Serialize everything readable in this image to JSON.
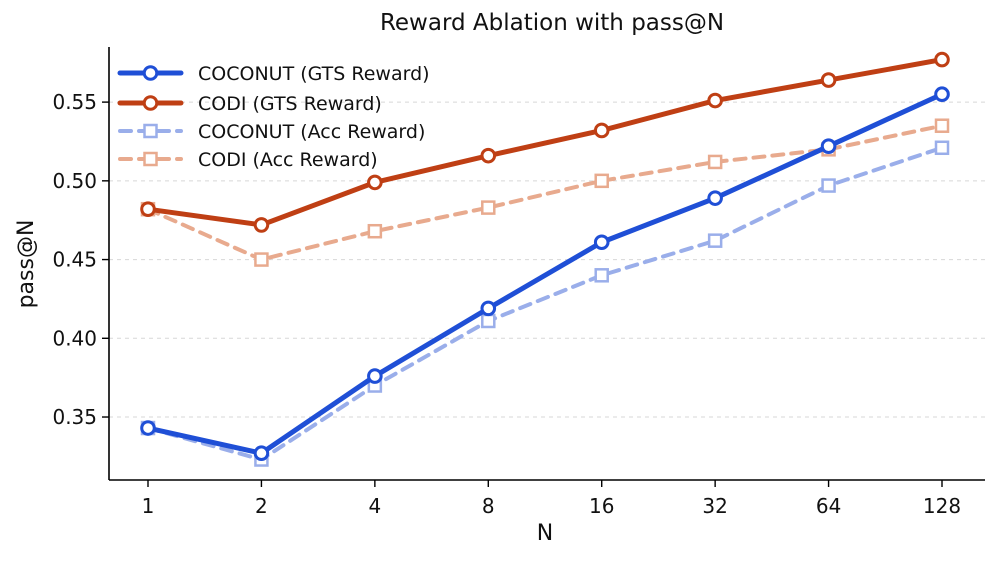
{
  "chart_data": {
    "type": "line",
    "title": "Reward Ablation with pass@N",
    "xlabel": "N",
    "ylabel": "pass@N",
    "categories": [
      "1",
      "2",
      "4",
      "8",
      "16",
      "32",
      "64",
      "128"
    ],
    "ylim": [
      0.31,
      0.585
    ],
    "yticks": [
      "0.35",
      "0.40",
      "0.45",
      "0.50",
      "0.55"
    ],
    "legend_position": "top-left",
    "grid": "horizontal-dashed",
    "series": [
      {
        "name": "COCONUT (GTS Reward)",
        "values": [
          0.343,
          0.327,
          0.376,
          0.419,
          0.461,
          0.489,
          0.522,
          0.555
        ],
        "color": "#1f4fd6",
        "style": "solid",
        "marker": "circle"
      },
      {
        "name": "CODI (GTS Reward)",
        "values": [
          0.482,
          0.472,
          0.499,
          0.516,
          0.532,
          0.551,
          0.564,
          0.577
        ],
        "color": "#bf3f14",
        "style": "solid",
        "marker": "circle"
      },
      {
        "name": "COCONUT (Acc Reward)",
        "values": [
          0.343,
          0.323,
          0.37,
          0.411,
          0.44,
          0.462,
          0.497,
          0.521
        ],
        "color": "#9aaeea",
        "style": "dashed",
        "marker": "square"
      },
      {
        "name": "CODI (Acc Reward)",
        "values": [
          0.482,
          0.45,
          0.468,
          0.483,
          0.5,
          0.512,
          0.52,
          0.535
        ],
        "color": "#e8aa8e",
        "style": "dashed",
        "marker": "square"
      }
    ]
  }
}
